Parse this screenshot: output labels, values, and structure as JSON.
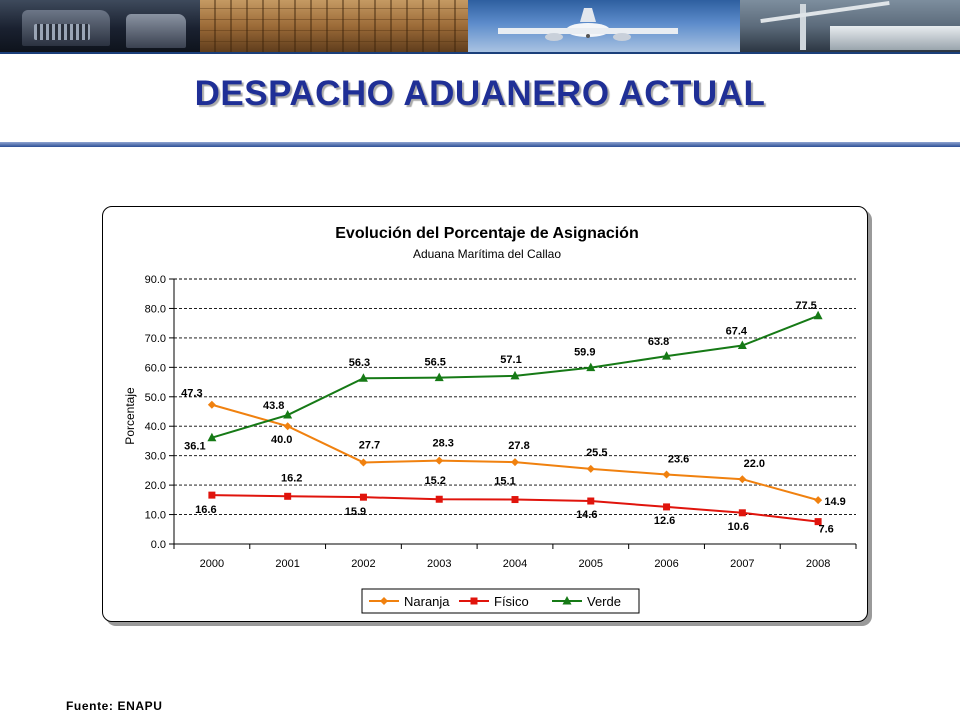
{
  "slide": {
    "title": "DESPACHO ADUANERO ACTUAL",
    "source": "Fuente: ENAPU"
  },
  "banner": {
    "images": [
      "truck-photo",
      "cargo-boxes-photo",
      "airplane-photo",
      "port-crane-photo"
    ]
  },
  "colors": {
    "title": "#1f2f96",
    "naranja": "#f0810f",
    "fisico": "#e0140c",
    "verde": "#167a16",
    "grid": "#000000"
  },
  "chart_data": {
    "type": "line",
    "title": "Evolución del Porcentaje de Asignación",
    "subtitle": "Aduana Marítima del Callao",
    "ylabel": "Porcentaje",
    "xlabel": "",
    "ylim": [
      0,
      90
    ],
    "yticks": [
      "0.0",
      "10.0",
      "20.0",
      "30.0",
      "40.0",
      "50.0",
      "60.0",
      "70.0",
      "80.0",
      "90.0"
    ],
    "categories": [
      "2000",
      "2001",
      "2002",
      "2003",
      "2004",
      "2005",
      "2006",
      "2007",
      "2008"
    ],
    "grid": "horizontal dashed",
    "legend_position": "bottom",
    "series": [
      {
        "name": "Naranja",
        "color": "#f0810f",
        "marker": "diamond",
        "values": [
          47.3,
          40.0,
          27.7,
          28.3,
          27.8,
          25.5,
          23.6,
          22.0,
          14.9
        ],
        "labels": [
          "47.3",
          "40.0",
          "27.7",
          "28.3",
          "27.8",
          "25.5",
          "23.6",
          "22.0",
          "14.9"
        ]
      },
      {
        "name": "Físico",
        "color": "#e0140c",
        "marker": "square",
        "values": [
          16.6,
          16.2,
          15.9,
          15.2,
          15.1,
          14.6,
          12.6,
          10.6,
          7.6
        ],
        "labels": [
          "16.6",
          "16.2",
          "15.9",
          "15.2",
          "15.1",
          "14.6",
          "12.6",
          "10.6",
          "7.6"
        ]
      },
      {
        "name": "Verde",
        "color": "#167a16",
        "marker": "triangle",
        "values": [
          36.1,
          43.8,
          56.3,
          56.5,
          57.1,
          59.9,
          63.8,
          67.4,
          77.5
        ],
        "labels": [
          "36.1",
          "43.8",
          "56.3",
          "56.5",
          "57.1",
          "59.9",
          "63.8",
          "67.4",
          "77.5"
        ]
      }
    ]
  }
}
